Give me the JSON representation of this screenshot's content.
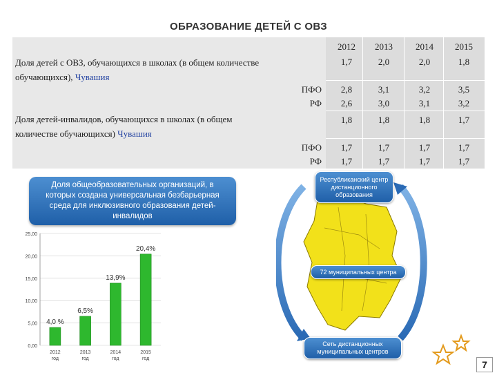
{
  "title": "ОБРАЗОВАНИЕ ДЕТЕЙ С ОВЗ",
  "table": {
    "years": [
      "2012",
      "2013",
      "2014",
      "2015"
    ],
    "section1": {
      "label_line1": "Доля детей с ОВЗ, обучающихся в школах (в общем количестве",
      "label_line2": "обучающихся),",
      "region": "Чувашия",
      "values": [
        "1,7",
        "2,0",
        "2,0",
        "1,8"
      ]
    },
    "pfo1": {
      "label": "ПФО",
      "values": [
        "2,8",
        "3,1",
        "3,2",
        "3,5"
      ]
    },
    "rf1": {
      "label": "РФ",
      "values": [
        "2,6",
        "3,0",
        "3,1",
        "3,2"
      ]
    },
    "section2": {
      "label_line1": "Доля детей-инвалидов, обучающихся в школах (в общем",
      "label_line2": "количестве обучающихся)",
      "region": "Чувашия",
      "values": [
        "1,8",
        "1,8",
        "1,8",
        "1,7"
      ]
    },
    "pfo2": {
      "label": "ПФО",
      "values": [
        "1,7",
        "1,7",
        "1,7",
        "1,7"
      ]
    },
    "rf2": {
      "label": "РФ",
      "values": [
        "1,7",
        "1,7",
        "1,7",
        "1,7"
      ]
    }
  },
  "callout": "Доля общеобразовательных организаций, в которых создана универсальная безбарьерная среда для инклюзивного образования детей-инвалидов",
  "chart_data": {
    "type": "bar",
    "categories": [
      "2012 год",
      "2013 год",
      "2014 год",
      "2015 год"
    ],
    "values": [
      4.0,
      6.5,
      13.9,
      20.4
    ],
    "data_labels": [
      "4,0 %",
      "6,5%",
      "13,9%",
      "20,4%"
    ],
    "yticks": [
      "0,00",
      "5,00",
      "10,00",
      "15,00",
      "20,00",
      "25,00"
    ],
    "ylim": [
      0,
      25
    ],
    "bar_color": "#2eb82e"
  },
  "map": {
    "top_label": "Республиканский центр дистанционного образования",
    "mid_label": "72 муниципальных центра",
    "bottom_label": "Сеть дистанционных муниципальных центров"
  },
  "page_number": "7"
}
